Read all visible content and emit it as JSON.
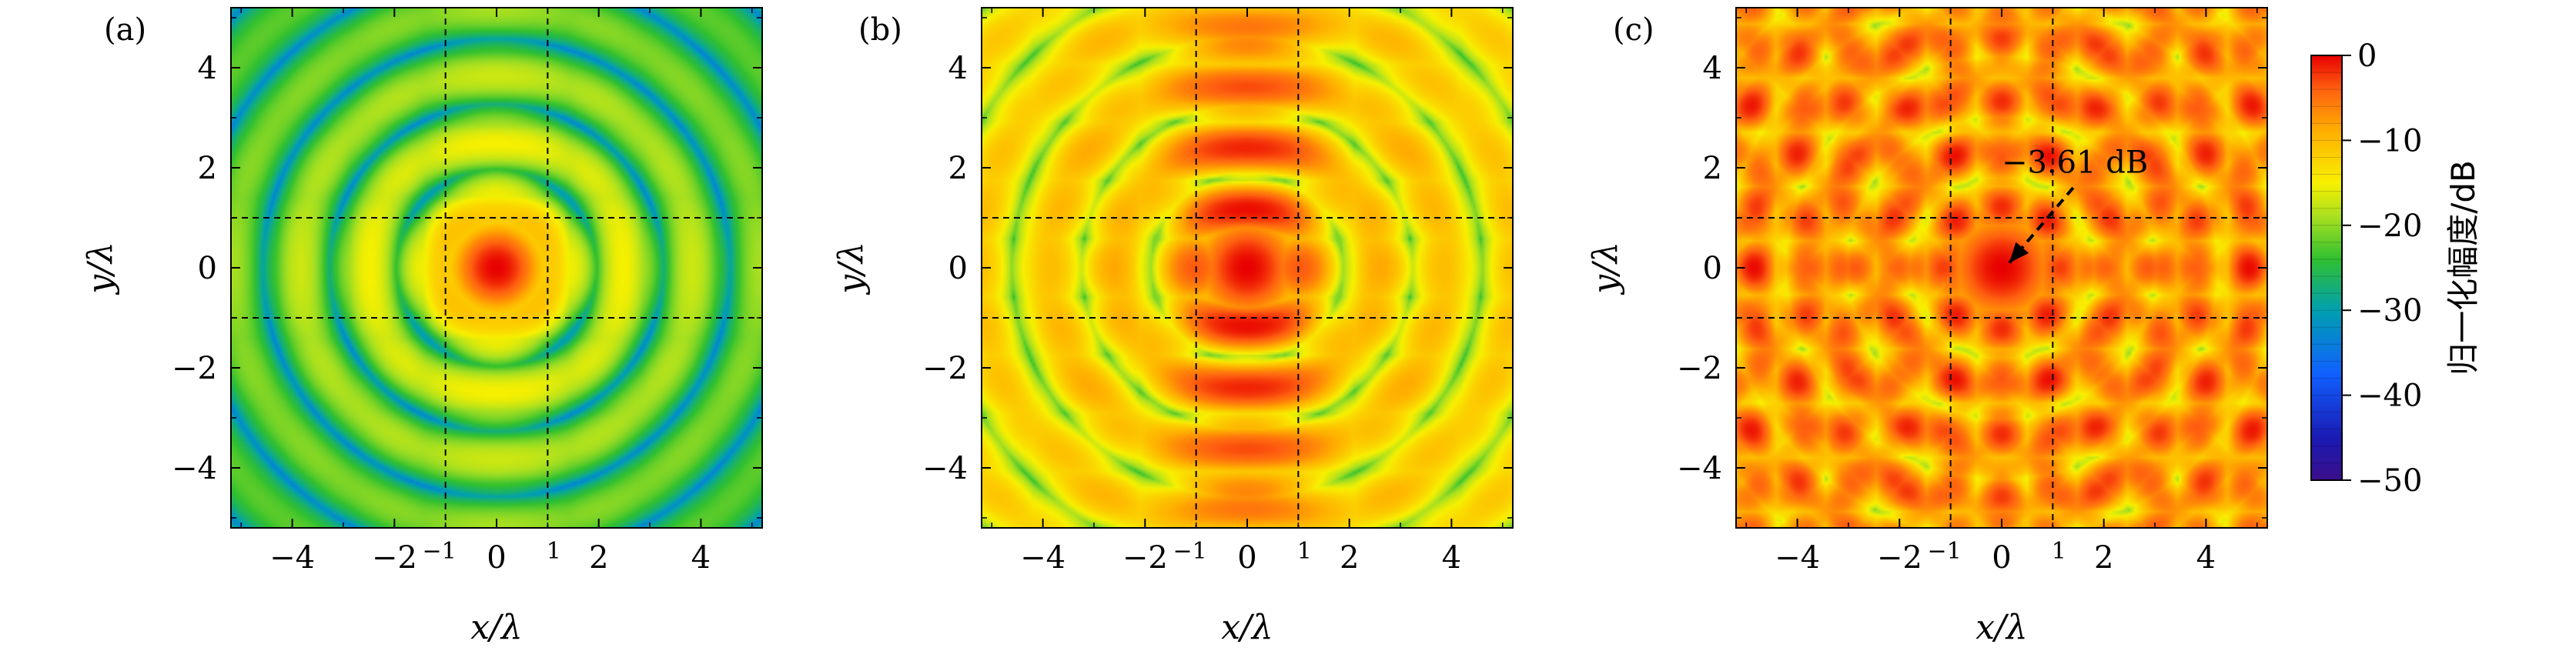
{
  "chart_data": [
    {
      "type": "heatmap",
      "panel_label": "(a)",
      "xlabel": "x/λ",
      "ylabel": "y/λ",
      "xlim": [
        -5.2,
        5.2
      ],
      "ylim": [
        -5.2,
        5.2
      ],
      "x_ticks": [
        "−4",
        "−2",
        "0",
        "2",
        "4"
      ],
      "x_tick_values": [
        -4,
        -2,
        0,
        2,
        4
      ],
      "y_ticks": [
        "−4",
        "−2",
        "0",
        "2",
        "4"
      ],
      "y_tick_values": [
        -4,
        -2,
        0,
        2,
        4
      ],
      "extra_x_ticks": [
        "−1",
        "1"
      ],
      "extra_x_tick_values": [
        -1,
        1
      ],
      "dashed_guides_x": [
        -1,
        1
      ],
      "dashed_guides_y": [
        -1,
        1
      ],
      "peak_db": 0,
      "floor_db": -35
    },
    {
      "type": "heatmap",
      "panel_label": "(b)",
      "xlabel": "x/λ",
      "ylabel": "y/λ",
      "xlim": [
        -5.2,
        5.2
      ],
      "ylim": [
        -5.2,
        5.2
      ],
      "x_ticks": [
        "−4",
        "−2",
        "0",
        "2",
        "4"
      ],
      "x_tick_values": [
        -4,
        -2,
        0,
        2,
        4
      ],
      "y_ticks": [
        "−4",
        "−2",
        "0",
        "2",
        "4"
      ],
      "y_tick_values": [
        -4,
        -2,
        0,
        2,
        4
      ],
      "extra_x_ticks": [
        "−1",
        "1"
      ],
      "extra_x_tick_values": [
        -1,
        1
      ],
      "dashed_guides_x": [
        -1,
        1
      ],
      "dashed_guides_y": [
        -1,
        1
      ],
      "peak_db": 0,
      "floor_db": -25
    },
    {
      "type": "heatmap",
      "panel_label": "(c)",
      "xlabel": "x/λ",
      "ylabel": "y/λ",
      "xlim": [
        -5.2,
        5.2
      ],
      "ylim": [
        -5.2,
        5.2
      ],
      "x_ticks": [
        "−4",
        "−2",
        "0",
        "2",
        "4"
      ],
      "x_tick_values": [
        -4,
        -2,
        0,
        2,
        4
      ],
      "y_ticks": [
        "−4",
        "−2",
        "0",
        "2",
        "4"
      ],
      "y_tick_values": [
        -4,
        -2,
        0,
        2,
        4
      ],
      "extra_x_ticks": [
        "−1",
        "1"
      ],
      "extra_x_tick_values": [
        -1,
        1
      ],
      "dashed_guides_x": [
        -1,
        1
      ],
      "dashed_guides_y": [
        -1,
        1
      ],
      "peak_db": 0,
      "floor_db": -22,
      "annotation": {
        "text": "−3.61 dB",
        "text_at": [
          0.0,
          1.9
        ],
        "arrow_from": [
          1.4,
          1.6
        ],
        "arrow_to": [
          0.15,
          0.1
        ]
      }
    }
  ],
  "colorbar": {
    "label": "归一化幅度/dB",
    "range": [
      -50,
      0
    ],
    "ticks": [
      "0",
      "−10",
      "−20",
      "−30",
      "−40",
      "−50"
    ],
    "tick_values": [
      0,
      -10,
      -20,
      -30,
      -40,
      -50
    ],
    "colormap": "jet"
  }
}
